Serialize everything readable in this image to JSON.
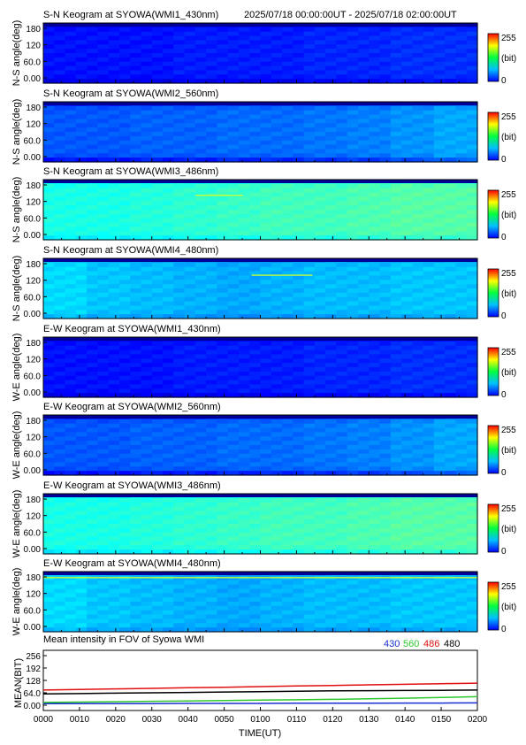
{
  "header": {
    "time_range": "2025/07/18 00:00:00UT - 2025/07/18 02:00:00UT"
  },
  "colors": {
    "line_430": "#1a2fd0",
    "line_560": "#2ec82e",
    "line_486": "#e01010",
    "line_480": "#000000"
  },
  "chart_data": [
    {
      "type": "heatmap",
      "title": "S-N Keogram at SYOWA(WMI1_430nm)",
      "ylabel": "N-S angle(deg)",
      "yticks": [
        "180",
        "120",
        "60.0",
        "0.00"
      ],
      "ylim": [
        0,
        180
      ],
      "colorbar": {
        "max": "255",
        "unit": "(bit)",
        "min": "0"
      },
      "intensity": {
        "base": 0.12,
        "trend": [
          0.02,
          0.02,
          0.02,
          0.03,
          0.03,
          0.03,
          0.04,
          0.04,
          0.05,
          0.05
        ],
        "top_band": 0.05,
        "bottom_band": 0.05,
        "arc": null
      }
    },
    {
      "type": "heatmap",
      "title": "S-N Keogram at SYOWA(WMI2_560nm)",
      "ylabel": "N-S angle(deg)",
      "yticks": [
        "180",
        "120",
        "60.0",
        "0.00"
      ],
      "ylim": [
        0,
        180
      ],
      "colorbar": {
        "max": "255",
        "unit": "(bit)",
        "min": "0"
      },
      "intensity": {
        "base": 0.19,
        "trend": [
          0.02,
          0.02,
          0.03,
          0.03,
          0.04,
          0.04,
          0.05,
          0.06,
          0.08,
          0.1
        ],
        "top_band": 0.09,
        "bottom_band": 0.1,
        "arc": null
      }
    },
    {
      "type": "heatmap",
      "title": "S-N Keogram at SYOWA(WMI3_486nm)",
      "ylabel": "N-S angle(deg)",
      "yticks": [
        "180",
        "120",
        "60.0",
        "0.00"
      ],
      "ylim": [
        0,
        180
      ],
      "colorbar": {
        "max": "255",
        "unit": "(bit)",
        "min": "0"
      },
      "intensity": {
        "base": 0.4,
        "trend": [
          0.0,
          0.0,
          0.01,
          0.02,
          0.03,
          0.04,
          0.04,
          0.05,
          0.06,
          0.06
        ],
        "top_band": 0.05,
        "bottom_band": 0.05,
        "arc": {
          "x0": 0.35,
          "x1": 0.46,
          "y": 0.74
        }
      }
    },
    {
      "type": "heatmap",
      "title": "S-N Keogram at SYOWA(WMI4_480nm)",
      "ylabel": "N-S angle(deg)",
      "yticks": [
        "180",
        "120",
        "60.0",
        "0.00"
      ],
      "ylim": [
        0,
        180
      ],
      "colorbar": {
        "max": "255",
        "unit": "(bit)",
        "min": "0"
      },
      "intensity": {
        "base": 0.34,
        "trend": [
          0.0,
          -0.02,
          -0.03,
          -0.04,
          -0.05,
          -0.04,
          -0.03,
          -0.03,
          -0.02,
          -0.02
        ],
        "top_band": 0.04,
        "bottom_band": 0.04,
        "arc": {
          "x0": 0.48,
          "x1": 0.62,
          "y": 0.72
        }
      }
    },
    {
      "type": "heatmap",
      "title": "E-W Keogram at SYOWA(WMI1_430nm)",
      "ylabel": "W-E angle(deg)",
      "yticks": [
        "180",
        "120",
        "60.0",
        "0.00"
      ],
      "ylim": [
        0,
        180
      ],
      "colorbar": {
        "max": "255",
        "unit": "(bit)",
        "min": "0"
      },
      "intensity": {
        "base": 0.12,
        "trend": [
          0.02,
          0.02,
          0.02,
          0.03,
          0.03,
          0.03,
          0.04,
          0.04,
          0.05,
          0.05
        ],
        "top_band": 0.05,
        "bottom_band": 0.05,
        "arc": null
      }
    },
    {
      "type": "heatmap",
      "title": "E-W Keogram at SYOWA(WMI2_560nm)",
      "ylabel": "W-E angle(deg)",
      "yticks": [
        "180",
        "120",
        "60.0",
        "0.00"
      ],
      "ylim": [
        0,
        180
      ],
      "colorbar": {
        "max": "255",
        "unit": "(bit)",
        "min": "0"
      },
      "intensity": {
        "base": 0.19,
        "trend": [
          0.02,
          0.02,
          0.03,
          0.03,
          0.04,
          0.04,
          0.05,
          0.06,
          0.08,
          0.1
        ],
        "top_band": 0.09,
        "bottom_band": 0.1,
        "arc": null
      }
    },
    {
      "type": "heatmap",
      "title": "E-W Keogram at SYOWA(WMI3_486nm)",
      "ylabel": "W-E angle(deg)",
      "yticks": [
        "180",
        "120",
        "60.0",
        "0.00"
      ],
      "ylim": [
        0,
        180
      ],
      "colorbar": {
        "max": "255",
        "unit": "(bit)",
        "min": "0"
      },
      "intensity": {
        "base": 0.4,
        "trend": [
          0.0,
          0.0,
          0.01,
          0.02,
          0.03,
          0.04,
          0.04,
          0.05,
          0.06,
          0.06
        ],
        "top_band": 0.06,
        "bottom_band": 0.06,
        "arc": null
      }
    },
    {
      "type": "heatmap",
      "title": "E-W Keogram at SYOWA(WMI4_480nm)",
      "ylabel": "W-E angle(deg)",
      "yticks": [
        "180",
        "120",
        "60.0",
        "0.00"
      ],
      "ylim": [
        0,
        180
      ],
      "colorbar": {
        "max": "255",
        "unit": "(bit)",
        "min": "0"
      },
      "intensity": {
        "base": 0.34,
        "trend": [
          0.0,
          -0.02,
          -0.03,
          -0.04,
          -0.05,
          -0.04,
          -0.03,
          -0.03,
          -0.02,
          -0.02
        ],
        "top_band": 0.04,
        "bottom_band": 0.04,
        "arc": {
          "x0": 0.0,
          "x1": 1.0,
          "y": 0.9
        }
      }
    },
    {
      "type": "line",
      "title": "Mean intensity in FOV of Syowa WMI",
      "xlabel": "TIME(UT)",
      "ylabel": "MEAN(BIT)",
      "ylim": [
        0,
        256
      ],
      "yticks": [
        "256",
        "192",
        "128",
        "64.0",
        "0.00"
      ],
      "ytick_values": [
        256,
        192,
        128,
        64,
        0
      ],
      "categories": [
        "0000",
        "0010",
        "0020",
        "0030",
        "0040",
        "0050",
        "0100",
        "0110",
        "0120",
        "0130",
        "0140",
        "0150",
        "0200"
      ],
      "legend": [
        "430",
        "560",
        "486",
        "480"
      ],
      "series": [
        {
          "name": "430",
          "values": [
            8,
            8,
            8,
            8,
            9,
            9,
            9,
            10,
            10,
            10,
            11,
            11,
            12
          ]
        },
        {
          "name": "560",
          "values": [
            14,
            16,
            18,
            20,
            22,
            24,
            26,
            28,
            30,
            33,
            36,
            40,
            44
          ]
        },
        {
          "name": "486",
          "values": [
            78,
            81,
            84,
            87,
            90,
            93,
            96,
            99,
            102,
            105,
            108,
            111,
            114
          ]
        },
        {
          "name": "480",
          "values": [
            58,
            60,
            62,
            64,
            66,
            68,
            70,
            72,
            74,
            75,
            76,
            77,
            78
          ]
        }
      ]
    }
  ]
}
